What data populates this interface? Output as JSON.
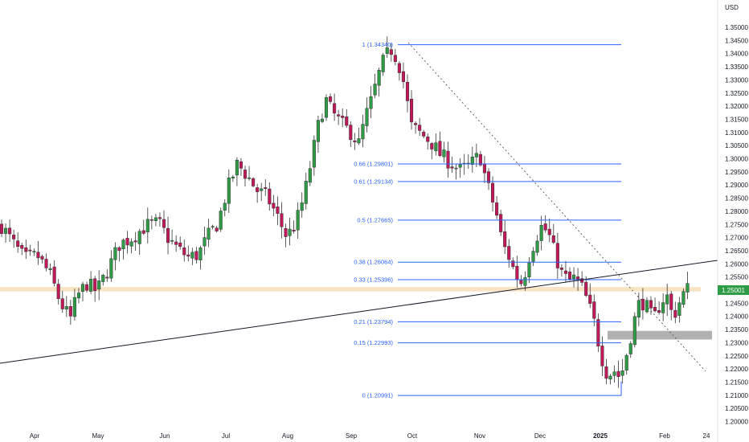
{
  "chart_data": {
    "type": "candlestick",
    "title": "",
    "currency": "USD",
    "price_axis": {
      "ylim": [
        1.195,
        1.357
      ],
      "ticks": [
        "1.35000",
        "1.34500",
        "1.34000",
        "1.33500",
        "1.33000",
        "1.32500",
        "1.32000",
        "1.31500",
        "1.31000",
        "1.30500",
        "1.30000",
        "1.29500",
        "1.29000",
        "1.28500",
        "1.28000",
        "1.27500",
        "1.27000",
        "1.26500",
        "1.26000",
        "1.25500",
        "1.25000",
        "1.24500",
        "1.24000",
        "1.23500",
        "1.23000",
        "1.22500",
        "1.22000",
        "1.21500",
        "1.21000",
        "1.20500",
        "1.20000"
      ]
    },
    "time_axis": {
      "labels": [
        {
          "text": "Apr",
          "bold": false
        },
        {
          "text": "May",
          "bold": false
        },
        {
          "text": "Jun",
          "bold": false
        },
        {
          "text": "Jul",
          "bold": false
        },
        {
          "text": "Aug",
          "bold": false
        },
        {
          "text": "Sep",
          "bold": false
        },
        {
          "text": "Oct",
          "bold": false
        },
        {
          "text": "Nov",
          "bold": false
        },
        {
          "text": "Dec",
          "bold": false
        },
        {
          "text": "2025",
          "bold": true
        },
        {
          "text": "Feb",
          "bold": false
        },
        {
          "text": "24",
          "bold": false
        }
      ]
    },
    "last_price": "1.25001",
    "fib_levels": [
      {
        "ratio": 1,
        "price": 1.3434,
        "label": "1 (1.34340)"
      },
      {
        "ratio": 0.66,
        "price": 1.29801,
        "label": "0.66 (1.29801)"
      },
      {
        "ratio": 0.61,
        "price": 1.29134,
        "label": "0.61 (1.29134)"
      },
      {
        "ratio": 0.5,
        "price": 1.27665,
        "label": "0.5 (1.27665)"
      },
      {
        "ratio": 0.38,
        "price": 1.26064,
        "label": "0.38 (1.26064)"
      },
      {
        "ratio": 0.33,
        "price": 1.25396,
        "label": "0.33 (1.25396)"
      },
      {
        "ratio": 0.21,
        "price": 1.23794,
        "label": "0.21 (1.23794)"
      },
      {
        "ratio": 0.15,
        "price": 1.22993,
        "label": "0.15 (1.22993)"
      },
      {
        "ratio": 0,
        "price": 1.20991,
        "label": "0 (1.20991)"
      }
    ],
    "support_band": [
      1.2495,
      1.2512
    ],
    "demand_zone": [
      1.2312,
      1.2345
    ],
    "price_path": [
      [
        0,
        1.2745
      ],
      [
        0.02,
        1.267
      ],
      [
        0.035,
        1.262
      ],
      [
        0.055,
        1.263
      ],
      [
        0.075,
        1.2555
      ],
      [
        0.09,
        1.245
      ],
      [
        0.105,
        1.239
      ],
      [
        0.115,
        1.2475
      ],
      [
        0.13,
        1.2525
      ],
      [
        0.145,
        1.2495
      ],
      [
        0.16,
        1.2565
      ],
      [
        0.18,
        1.2675
      ],
      [
        0.2,
        1.27
      ],
      [
        0.22,
        1.2745
      ],
      [
        0.24,
        1.2755
      ],
      [
        0.255,
        1.2695
      ],
      [
        0.27,
        1.2655
      ],
      [
        0.285,
        1.2625
      ],
      [
        0.3,
        1.2635
      ],
      [
        0.315,
        1.2705
      ],
      [
        0.33,
        1.2755
      ],
      [
        0.345,
        1.2885
      ],
      [
        0.36,
        1.298
      ],
      [
        0.375,
        1.2935
      ],
      [
        0.39,
        1.288
      ],
      [
        0.405,
        1.2855
      ],
      [
        0.42,
        1.2785
      ],
      [
        0.435,
        1.2705
      ],
      [
        0.445,
        1.2735
      ],
      [
        0.455,
        1.2795
      ],
      [
        0.465,
        1.2895
      ],
      [
        0.475,
        1.302
      ],
      [
        0.485,
        1.3145
      ],
      [
        0.495,
        1.3225
      ],
      [
        0.505,
        1.3175
      ],
      [
        0.52,
        1.313
      ],
      [
        0.535,
        1.3095
      ],
      [
        0.545,
        1.3055
      ],
      [
        0.555,
        1.3155
      ],
      [
        0.565,
        1.3225
      ],
      [
        0.575,
        1.3315
      ],
      [
        0.585,
        1.3385
      ],
      [
        0.595,
        1.3415
      ],
      [
        0.605,
        1.3375
      ],
      [
        0.615,
        1.328
      ],
      [
        0.625,
        1.3125
      ],
      [
        0.64,
        1.3095
      ],
      [
        0.655,
        1.3065
      ],
      [
        0.67,
        1.3015
      ],
      [
        0.685,
        1.2985
      ],
      [
        0.7,
        1.2955
      ],
      [
        0.715,
        1.2975
      ],
      [
        0.73,
        1.3015
      ],
      [
        0.74,
        1.2915
      ],
      [
        0.755,
        1.2795
      ],
      [
        0.765,
        1.2675
      ],
      [
        0.775,
        1.2625
      ],
      [
        0.785,
        1.2555
      ],
      [
        0.795,
        1.2525
      ],
      [
        0.805,
        1.2625
      ],
      [
        0.815,
        1.2695
      ],
      [
        0.825,
        1.2745
      ],
      [
        0.835,
        1.2715
      ],
      [
        0.845,
        1.2635
      ],
      [
        0.855,
        1.2565
      ],
      [
        0.865,
        1.2535
      ],
      [
        0.875,
        1.2545
      ],
      [
        0.885,
        1.2515
      ],
      [
        0.895,
        1.2455
      ],
      [
        0.905,
        1.2375
      ],
      [
        0.915,
        1.2255
      ],
      [
        0.925,
        1.2175
      ],
      [
        0.935,
        1.2195
      ],
      [
        0.945,
        1.2165
      ],
      [
        0.955,
        1.2265
      ],
      [
        0.965,
        1.2375
      ],
      [
        0.975,
        1.2465
      ],
      [
        0.985,
        1.2435
      ],
      [
        0.995,
        1.2385
      ],
      [
        1.005,
        1.2445
      ],
      [
        1.015,
        1.2485
      ],
      [
        1.025,
        1.2395
      ],
      [
        1.035,
        1.2455
      ],
      [
        1.045,
        1.2505
      ]
    ]
  }
}
